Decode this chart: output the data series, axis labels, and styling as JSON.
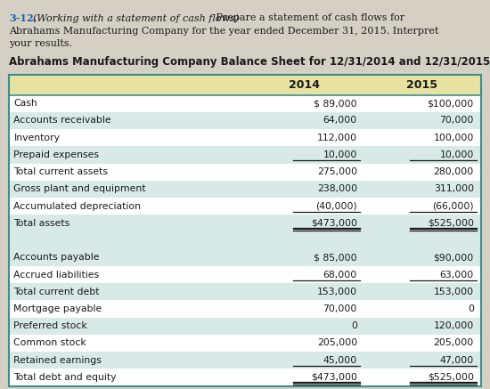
{
  "problem_num": "3-12.",
  "problem_italic": "(Working with a statement of cash flows)",
  "problem_normal1": " Prepare a statement of cash flows for",
  "problem_normal2": "Abrahams Manufacturing Company for the year ended December 31, 2015. Interpret",
  "problem_normal3": "your results.",
  "table_title": "Abrahams Manufacturing Company Balance Sheet for 12/31/2014 and 12/31/2015",
  "col_headers": [
    "2014",
    "2015"
  ],
  "rows": [
    {
      "label": "Cash",
      "v2014": "$ 89,000",
      "v2015": "$100,000",
      "ul": false,
      "bold": false,
      "blank": false
    },
    {
      "label": "Accounts receivable",
      "v2014": "64,000",
      "v2015": "70,000",
      "ul": false,
      "bold": false,
      "blank": false
    },
    {
      "label": "Inventory",
      "v2014": "112,000",
      "v2015": "100,000",
      "ul": false,
      "bold": false,
      "blank": false
    },
    {
      "label": "Prepaid expenses",
      "v2014": "10,000",
      "v2015": "10,000",
      "ul": true,
      "bold": false,
      "blank": false
    },
    {
      "label": "Total current assets",
      "v2014": "275,000",
      "v2015": "280,000",
      "ul": false,
      "bold": false,
      "blank": false
    },
    {
      "label": "Gross plant and equipment",
      "v2014": "238,000",
      "v2015": "311,000",
      "ul": false,
      "bold": false,
      "blank": false
    },
    {
      "label": "Accumulated depreciation",
      "v2014": "(40,000)",
      "v2015": "(66,000)",
      "ul": true,
      "bold": false,
      "blank": false
    },
    {
      "label": "Total assets",
      "v2014": "$473,000",
      "v2015": "$525,000",
      "ul": true,
      "bold": false,
      "blank": false
    },
    {
      "label": "",
      "v2014": "",
      "v2015": "",
      "ul": false,
      "bold": false,
      "blank": true
    },
    {
      "label": "Accounts payable",
      "v2014": "$ 85,000",
      "v2015": "$90,000",
      "ul": false,
      "bold": false,
      "blank": false
    },
    {
      "label": "Accrued liabilities",
      "v2014": "68,000",
      "v2015": "63,000",
      "ul": true,
      "bold": false,
      "blank": false
    },
    {
      "label": "Total current debt",
      "v2014": "153,000",
      "v2015": "153,000",
      "ul": false,
      "bold": false,
      "blank": false
    },
    {
      "label": "Mortgage payable",
      "v2014": "70,000",
      "v2015": "0",
      "ul": false,
      "bold": false,
      "blank": false
    },
    {
      "label": "Preferred stock",
      "v2014": "0",
      "v2015": "120,000",
      "ul": false,
      "bold": false,
      "blank": false
    },
    {
      "label": "Common stock",
      "v2014": "205,000",
      "v2015": "205,000",
      "ul": false,
      "bold": false,
      "blank": false
    },
    {
      "label": "Retained earnings",
      "v2014": "45,000",
      "v2015": "47,000",
      "ul": true,
      "bold": false,
      "blank": false
    },
    {
      "label": "Total debt and equity",
      "v2014": "$473,000",
      "v2015": "$525,000",
      "ul": true,
      "bold": false,
      "blank": false
    }
  ],
  "double_ul_rows": [
    7,
    16
  ],
  "header_bg": "#e8e2a0",
  "row_bg_alt": "#d8eae6",
  "row_bg_white": "#ffffff",
  "blank_row_bg": "#d8eae6",
  "border_color": "#3a9090",
  "problem_num_color": "#1a5ea8",
  "text_color": "#1a1a1a",
  "bg_color": "#d4d0c4",
  "font_size": 7.8,
  "header_font_size": 9.0,
  "title_font_size": 8.5
}
